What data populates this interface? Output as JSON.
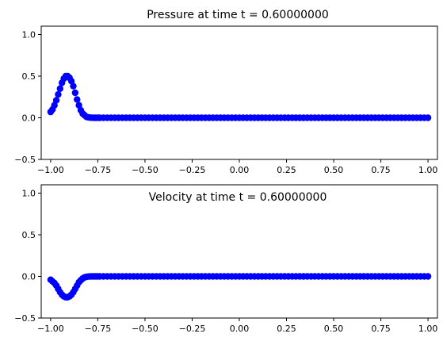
{
  "chart_data": [
    {
      "type": "scatter",
      "title": "Pressure at time t =      0.60000000",
      "xlim": [
        -1.05,
        1.05
      ],
      "ylim": [
        -0.5,
        1.1
      ],
      "xticks": [
        -1.0,
        -0.75,
        -0.5,
        -0.25,
        0.0,
        0.25,
        0.5,
        0.75,
        1.0
      ],
      "xtick_labels": [
        "−1.00",
        "−0.75",
        "−0.50",
        "−0.25",
        "0.00",
        "0.25",
        "0.50",
        "0.75",
        "1.00"
      ],
      "yticks": [
        -0.5,
        0.0,
        0.5,
        1.0
      ],
      "ytick_labels": [
        "−0.5",
        "0.0",
        "0.5",
        "1.0"
      ],
      "grid": false,
      "marker_color": "#0000ff",
      "series": [
        {
          "x": [
            -1.0,
            -0.99,
            -0.98,
            -0.97,
            -0.96,
            -0.95,
            -0.94,
            -0.93,
            -0.92,
            -0.91,
            -0.9,
            -0.89,
            -0.88,
            -0.87,
            -0.86,
            -0.85,
            -0.84,
            -0.83,
            -0.82,
            -0.81,
            -0.8,
            -0.79,
            -0.78,
            -0.77,
            -0.76,
            -0.75,
            -0.74,
            -0.72,
            -0.7,
            -0.68,
            -0.66,
            -0.64,
            -0.62,
            -0.6,
            -0.58,
            -0.56,
            -0.54,
            -0.52,
            -0.5,
            -0.48,
            -0.46,
            -0.44,
            -0.42,
            -0.4,
            -0.38,
            -0.36,
            -0.34,
            -0.32,
            -0.3,
            -0.28,
            -0.26,
            -0.24,
            -0.22,
            -0.2,
            -0.18,
            -0.16,
            -0.14,
            -0.12,
            -0.1,
            -0.08,
            -0.06,
            -0.04,
            -0.02,
            0.0,
            0.02,
            0.04,
            0.06,
            0.08,
            0.1,
            0.12,
            0.14,
            0.16,
            0.18,
            0.2,
            0.22,
            0.24,
            0.26,
            0.28,
            0.3,
            0.32,
            0.34,
            0.36,
            0.38,
            0.4,
            0.42,
            0.44,
            0.46,
            0.48,
            0.5,
            0.52,
            0.54,
            0.56,
            0.58,
            0.6,
            0.62,
            0.64,
            0.66,
            0.68,
            0.7,
            0.72,
            0.74,
            0.76,
            0.78,
            0.8,
            0.82,
            0.84,
            0.86,
            0.88,
            0.9,
            0.92,
            0.94,
            0.96,
            0.98,
            1.0
          ],
          "y": [
            0.07,
            0.1,
            0.15,
            0.21,
            0.28,
            0.35,
            0.42,
            0.47,
            0.5,
            0.5,
            0.48,
            0.44,
            0.38,
            0.3,
            0.22,
            0.15,
            0.09,
            0.05,
            0.03,
            0.01,
            0.005,
            0.002,
            0.001,
            0.0,
            0.0,
            0.0,
            0.0,
            0.0,
            0.0,
            0.0,
            0.0,
            0.0,
            0.0,
            0.0,
            0.0,
            0.0,
            0.0,
            0.0,
            0.0,
            0.0,
            0.0,
            0.0,
            0.0,
            0.0,
            0.0,
            0.0,
            0.0,
            0.0,
            0.0,
            0.0,
            0.0,
            0.0,
            0.0,
            0.0,
            0.0,
            0.0,
            0.0,
            0.0,
            0.0,
            0.0,
            0.0,
            0.0,
            0.0,
            0.0,
            0.0,
            0.0,
            0.0,
            0.0,
            0.0,
            0.0,
            0.0,
            0.0,
            0.0,
            0.0,
            0.0,
            0.0,
            0.0,
            0.0,
            0.0,
            0.0,
            0.0,
            0.0,
            0.0,
            0.0,
            0.0,
            0.0,
            0.0,
            0.0,
            0.0,
            0.0,
            0.0,
            0.0,
            0.0,
            0.0,
            0.0,
            0.0,
            0.0,
            0.0,
            0.0,
            0.0,
            0.0,
            0.0,
            0.0,
            0.0,
            0.0,
            0.0,
            0.0,
            0.0,
            0.0,
            0.0,
            0.0,
            0.0,
            0.0,
            0.0
          ]
        }
      ]
    },
    {
      "type": "scatter",
      "title": "Velocity at time t =      0.60000000",
      "xlim": [
        -1.05,
        1.05
      ],
      "ylim": [
        -0.5,
        1.1
      ],
      "xticks": [
        -1.0,
        -0.75,
        -0.5,
        -0.25,
        0.0,
        0.25,
        0.5,
        0.75,
        1.0
      ],
      "xtick_labels": [
        "−1.00",
        "−0.75",
        "−0.50",
        "−0.25",
        "0.00",
        "0.25",
        "0.50",
        "0.75",
        "1.00"
      ],
      "yticks": [
        -0.5,
        0.0,
        0.5,
        1.0
      ],
      "ytick_labels": [
        "−0.5",
        "0.0",
        "0.5",
        "1.0"
      ],
      "grid": false,
      "marker_color": "#0000ff",
      "series": [
        {
          "x": [
            -1.0,
            -0.99,
            -0.98,
            -0.97,
            -0.96,
            -0.95,
            -0.94,
            -0.93,
            -0.92,
            -0.91,
            -0.9,
            -0.89,
            -0.88,
            -0.87,
            -0.86,
            -0.85,
            -0.84,
            -0.83,
            -0.82,
            -0.81,
            -0.8,
            -0.79,
            -0.78,
            -0.77,
            -0.76,
            -0.75,
            -0.74,
            -0.72,
            -0.7,
            -0.68,
            -0.66,
            -0.64,
            -0.62,
            -0.6,
            -0.58,
            -0.56,
            -0.54,
            -0.52,
            -0.5,
            -0.48,
            -0.46,
            -0.44,
            -0.42,
            -0.4,
            -0.38,
            -0.36,
            -0.34,
            -0.32,
            -0.3,
            -0.28,
            -0.26,
            -0.24,
            -0.22,
            -0.2,
            -0.18,
            -0.16,
            -0.14,
            -0.12,
            -0.1,
            -0.08,
            -0.06,
            -0.04,
            -0.02,
            0.0,
            0.02,
            0.04,
            0.06,
            0.08,
            0.1,
            0.12,
            0.14,
            0.16,
            0.18,
            0.2,
            0.22,
            0.24,
            0.26,
            0.28,
            0.3,
            0.32,
            0.34,
            0.36,
            0.38,
            0.4,
            0.42,
            0.44,
            0.46,
            0.48,
            0.5,
            0.52,
            0.54,
            0.56,
            0.58,
            0.6,
            0.62,
            0.64,
            0.66,
            0.68,
            0.7,
            0.72,
            0.74,
            0.76,
            0.78,
            0.8,
            0.82,
            0.84,
            0.86,
            0.88,
            0.9,
            0.92,
            0.94,
            0.96,
            0.98,
            1.0
          ],
          "y": [
            -0.04,
            -0.06,
            -0.08,
            -0.11,
            -0.15,
            -0.19,
            -0.22,
            -0.24,
            -0.25,
            -0.25,
            -0.24,
            -0.22,
            -0.19,
            -0.15,
            -0.11,
            -0.07,
            -0.045,
            -0.025,
            -0.012,
            -0.005,
            -0.002,
            -0.001,
            0.0,
            0.0,
            0.0,
            0.0,
            0.0,
            0.0,
            0.0,
            0.0,
            0.0,
            0.0,
            0.0,
            0.0,
            0.0,
            0.0,
            0.0,
            0.0,
            0.0,
            0.0,
            0.0,
            0.0,
            0.0,
            0.0,
            0.0,
            0.0,
            0.0,
            0.0,
            0.0,
            0.0,
            0.0,
            0.0,
            0.0,
            0.0,
            0.0,
            0.0,
            0.0,
            0.0,
            0.0,
            0.0,
            0.0,
            0.0,
            0.0,
            0.0,
            0.0,
            0.0,
            0.0,
            0.0,
            0.0,
            0.0,
            0.0,
            0.0,
            0.0,
            0.0,
            0.0,
            0.0,
            0.0,
            0.0,
            0.0,
            0.0,
            0.0,
            0.0,
            0.0,
            0.0,
            0.0,
            0.0,
            0.0,
            0.0,
            0.0,
            0.0,
            0.0,
            0.0,
            0.0,
            0.0,
            0.0,
            0.0,
            0.0,
            0.0,
            0.0,
            0.0,
            0.0,
            0.0,
            0.0,
            0.0,
            0.0,
            0.0,
            0.0,
            0.0,
            0.0,
            0.0,
            0.0,
            0.0,
            0.0,
            0.0
          ]
        }
      ]
    }
  ]
}
